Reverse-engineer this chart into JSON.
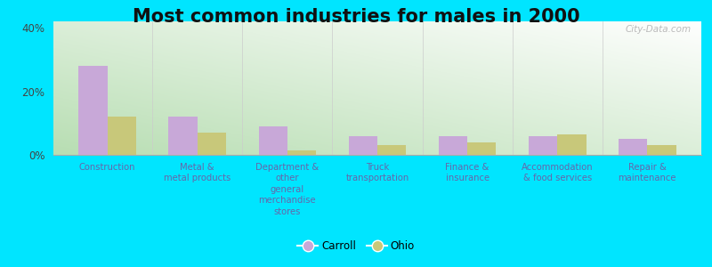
{
  "title": "Most common industries for males in 2000",
  "categories": [
    "Construction",
    "Metal &\nmetal products",
    "Department &\nother\ngeneral\nmerchandise\nstores",
    "Truck\ntransportation",
    "Finance &\ninsurance",
    "Accommodation\n& food services",
    "Repair &\nmaintenance"
  ],
  "carroll_values": [
    28.0,
    12.0,
    9.0,
    6.0,
    6.0,
    6.0,
    5.0
  ],
  "ohio_values": [
    12.0,
    7.0,
    1.5,
    3.0,
    4.0,
    6.5,
    3.0
  ],
  "carroll_color": "#c8a8d8",
  "ohio_color": "#c8c87a",
  "ylim": [
    0,
    42
  ],
  "yticks": [
    0,
    20,
    40
  ],
  "ytick_labels": [
    "0%",
    "20%",
    "40%"
  ],
  "outer_background": "#00e5ff",
  "title_fontsize": 15,
  "legend_labels": [
    "Carroll",
    "Ohio"
  ],
  "watermark": "City-Data.com",
  "grad_bottom_left": "#b8ddb0",
  "grad_top_right": "#f8fff8"
}
